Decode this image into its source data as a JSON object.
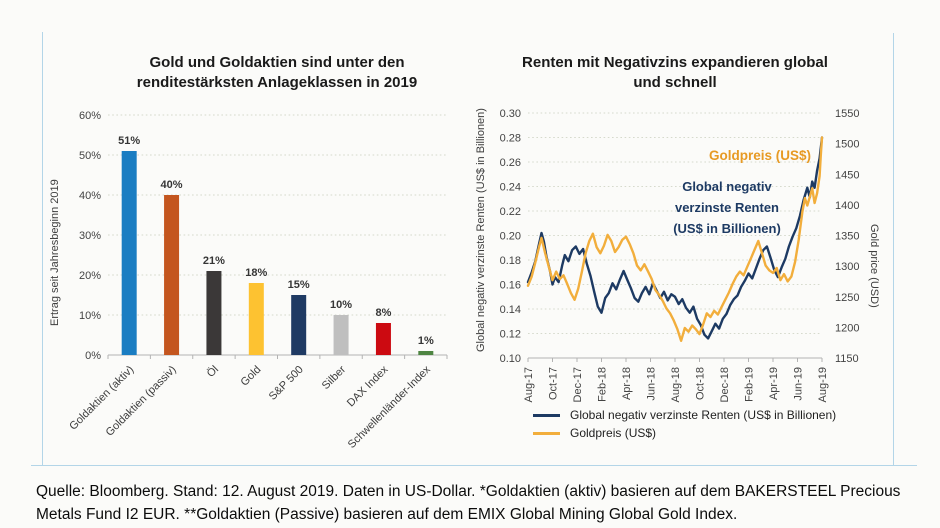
{
  "page": {
    "background": "#fbfbf9",
    "border_color": "#b3d5e8"
  },
  "footer": {
    "text": "Quelle: Bloomberg. Stand: 12. August 2019. Daten in US-Dollar. *Goldaktien (aktiv) basieren auf dem BAKERSTEEL Precious\nMetals Fund I2 EUR. **Goldaktien (Passive) basieren auf dem EMIX Global Mining Global Gold Index."
  },
  "chart_data": [
    {
      "type": "bar",
      "title": "Gold und Goldaktien sind unter den renditestärksten Anlageklassen in 2019",
      "ylabel": "Ertrag seit Jahresbeginn  2019",
      "categories": [
        "Goldaktien (aktiv)",
        "Goldaktien (passiv)",
        "Öl",
        "Gold",
        "S&P 500",
        "Silber",
        "DAX Index",
        "Schwellenländer-Index"
      ],
      "values": [
        51,
        40,
        21,
        18,
        15,
        10,
        8,
        1
      ],
      "data_labels": [
        "51%",
        "40%",
        "21%",
        "18%",
        "15%",
        "10%",
        "8%",
        "1%"
      ],
      "bar_colors": [
        "#1a7dc2",
        "#c4561f",
        "#3b3838",
        "#fdc231",
        "#1f3a63",
        "#bfbfbf",
        "#cc0a11",
        "#4e8542"
      ],
      "ylim": [
        0,
        60
      ],
      "ytick_step": 10,
      "yticks": [
        "0%",
        "10%",
        "20%",
        "30%",
        "40%",
        "50%",
        "60%"
      ],
      "grid": true,
      "legend_position": "none"
    },
    {
      "type": "line",
      "title": "Renten mit Negativzins expandieren global und schnell",
      "ylabel_left": "Global negativ verzinste Renten (US$ in Billionen)",
      "ylabel_right": "Gold price (USD)",
      "x_tick_labels": [
        "Aug-17",
        "Oct-17",
        "Dec-17",
        "Feb-18",
        "Apr-18",
        "Jun-18",
        "Aug-18",
        "Oct-18",
        "Dec-18",
        "Feb-19",
        "Apr-19",
        "Jun-19",
        "Aug-19"
      ],
      "x_range_months": [
        0,
        24
      ],
      "left_axis": {
        "min": 0.1,
        "max": 0.3,
        "ticks": [
          "0.10",
          "0.12",
          "0.14",
          "0.16",
          "0.18",
          "0.20",
          "0.22",
          "0.24",
          "0.26",
          "0.28",
          "0.30"
        ]
      },
      "right_axis": {
        "min": 1150,
        "max": 1550,
        "ticks": [
          "1150",
          "1200",
          "1250",
          "1300",
          "1350",
          "1400",
          "1450",
          "1500",
          "1550"
        ]
      },
      "grid": true,
      "legend_position": "bottom-left",
      "annotations": [
        {
          "text": "Goldpreis (US$)",
          "color": "#e79a24"
        },
        {
          "text": "Global negativ\nverzinste Renten\n(US$ in Billionen)",
          "color": "#1d3a63"
        }
      ],
      "series": [
        {
          "id": "renten-line",
          "name": "Global negativ verzinste Renten  (US$ in Billionen)",
          "color": "#1d3a63",
          "axis": "left",
          "points": [
            [
              0,
              0.162
            ],
            [
              0.3,
              0.17
            ],
            [
              0.6,
              0.179
            ],
            [
              0.9,
              0.193
            ],
            [
              1.1,
              0.202
            ],
            [
              1.3,
              0.195
            ],
            [
              1.5,
              0.183
            ],
            [
              1.8,
              0.171
            ],
            [
              2,
              0.16
            ],
            [
              2.2,
              0.166
            ],
            [
              2.5,
              0.162
            ],
            [
              2.8,
              0.176
            ],
            [
              3,
              0.184
            ],
            [
              3.3,
              0.179
            ],
            [
              3.6,
              0.188
            ],
            [
              3.9,
              0.191
            ],
            [
              4.2,
              0.185
            ],
            [
              4.5,
              0.189
            ],
            [
              4.8,
              0.177
            ],
            [
              5.1,
              0.167
            ],
            [
              5.4,
              0.154
            ],
            [
              5.7,
              0.142
            ],
            [
              6,
              0.137
            ],
            [
              6.3,
              0.149
            ],
            [
              6.6,
              0.153
            ],
            [
              6.9,
              0.161
            ],
            [
              7.2,
              0.156
            ],
            [
              7.5,
              0.164
            ],
            [
              7.8,
              0.171
            ],
            [
              8.1,
              0.164
            ],
            [
              8.4,
              0.157
            ],
            [
              8.7,
              0.149
            ],
            [
              9,
              0.146
            ],
            [
              9.3,
              0.153
            ],
            [
              9.6,
              0.158
            ],
            [
              9.9,
              0.152
            ],
            [
              10.2,
              0.161
            ],
            [
              10.5,
              0.155
            ],
            [
              10.8,
              0.149
            ],
            [
              11.1,
              0.154
            ],
            [
              11.4,
              0.147
            ],
            [
              11.7,
              0.152
            ],
            [
              12,
              0.15
            ],
            [
              12.3,
              0.144
            ],
            [
              12.6,
              0.148
            ],
            [
              12.9,
              0.141
            ],
            [
              13.2,
              0.137
            ],
            [
              13.5,
              0.142
            ],
            [
              13.8,
              0.132
            ],
            [
              14.1,
              0.127
            ],
            [
              14.4,
              0.119
            ],
            [
              14.7,
              0.116
            ],
            [
              15,
              0.122
            ],
            [
              15.3,
              0.128
            ],
            [
              15.6,
              0.124
            ],
            [
              15.9,
              0.132
            ],
            [
              16.2,
              0.136
            ],
            [
              16.5,
              0.143
            ],
            [
              16.8,
              0.148
            ],
            [
              17.1,
              0.151
            ],
            [
              17.4,
              0.158
            ],
            [
              17.7,
              0.163
            ],
            [
              18,
              0.169
            ],
            [
              18.3,
              0.165
            ],
            [
              18.6,
              0.173
            ],
            [
              18.9,
              0.181
            ],
            [
              19.2,
              0.188
            ],
            [
              19.5,
              0.191
            ],
            [
              19.8,
              0.182
            ],
            [
              20.1,
              0.172
            ],
            [
              20.4,
              0.166
            ],
            [
              20.7,
              0.174
            ],
            [
              21,
              0.181
            ],
            [
              21.3,
              0.191
            ],
            [
              21.6,
              0.199
            ],
            [
              21.9,
              0.206
            ],
            [
              22.2,
              0.216
            ],
            [
              22.5,
              0.229
            ],
            [
              22.8,
              0.239
            ],
            [
              23,
              0.231
            ],
            [
              23.2,
              0.244
            ],
            [
              23.4,
              0.239
            ],
            [
              23.6,
              0.253
            ],
            [
              23.8,
              0.263
            ],
            [
              24,
              0.28
            ]
          ]
        },
        {
          "id": "gold-line",
          "name": "Goldpreis (US$)",
          "color": "#f2ae3c",
          "axis": "right",
          "points": [
            [
              0,
              1268
            ],
            [
              0.3,
              1283
            ],
            [
              0.6,
              1306
            ],
            [
              0.9,
              1331
            ],
            [
              1.1,
              1346
            ],
            [
              1.4,
              1321
            ],
            [
              1.7,
              1299
            ],
            [
              2,
              1277
            ],
            [
              2.3,
              1291
            ],
            [
              2.6,
              1279
            ],
            [
              2.9,
              1285
            ],
            [
              3.2,
              1271
            ],
            [
              3.5,
              1256
            ],
            [
              3.8,
              1245
            ],
            [
              4.1,
              1263
            ],
            [
              4.4,
              1291
            ],
            [
              4.7,
              1321
            ],
            [
              5,
              1341
            ],
            [
              5.3,
              1353
            ],
            [
              5.6,
              1331
            ],
            [
              5.9,
              1321
            ],
            [
              6.2,
              1333
            ],
            [
              6.5,
              1351
            ],
            [
              6.8,
              1341
            ],
            [
              7.1,
              1323
            ],
            [
              7.4,
              1331
            ],
            [
              7.7,
              1343
            ],
            [
              8,
              1348
            ],
            [
              8.3,
              1336
            ],
            [
              8.6,
              1321
            ],
            [
              8.9,
              1301
            ],
            [
              9.2,
              1293
            ],
            [
              9.5,
              1303
            ],
            [
              9.8,
              1291
            ],
            [
              10.1,
              1279
            ],
            [
              10.4,
              1261
            ],
            [
              10.7,
              1253
            ],
            [
              11,
              1243
            ],
            [
              11.3,
              1231
            ],
            [
              11.6,
              1223
            ],
            [
              11.9,
              1211
            ],
            [
              12.2,
              1197
            ],
            [
              12.5,
              1178
            ],
            [
              12.8,
              1199
            ],
            [
              13.1,
              1193
            ],
            [
              13.4,
              1203
            ],
            [
              13.7,
              1197
            ],
            [
              14,
              1189
            ],
            [
              14.3,
              1205
            ],
            [
              14.6,
              1223
            ],
            [
              14.9,
              1217
            ],
            [
              15.2,
              1227
            ],
            [
              15.5,
              1221
            ],
            [
              15.8,
              1233
            ],
            [
              16.1,
              1245
            ],
            [
              16.4,
              1257
            ],
            [
              16.7,
              1271
            ],
            [
              17,
              1283
            ],
            [
              17.3,
              1291
            ],
            [
              17.6,
              1285
            ],
            [
              17.9,
              1299
            ],
            [
              18.2,
              1313
            ],
            [
              18.5,
              1327
            ],
            [
              18.8,
              1341
            ],
            [
              19.1,
              1321
            ],
            [
              19.4,
              1301
            ],
            [
              19.7,
              1293
            ],
            [
              20,
              1289
            ],
            [
              20.3,
              1297
            ],
            [
              20.6,
              1277
            ],
            [
              20.9,
              1287
            ],
            [
              21.2,
              1275
            ],
            [
              21.5,
              1283
            ],
            [
              21.8,
              1307
            ],
            [
              22.1,
              1343
            ],
            [
              22.4,
              1389
            ],
            [
              22.6,
              1411
            ],
            [
              22.8,
              1399
            ],
            [
              23,
              1413
            ],
            [
              23.2,
              1427
            ],
            [
              23.4,
              1403
            ],
            [
              23.6,
              1419
            ],
            [
              23.8,
              1447
            ],
            [
              23.9,
              1481
            ],
            [
              24,
              1510
            ]
          ]
        }
      ]
    }
  ]
}
